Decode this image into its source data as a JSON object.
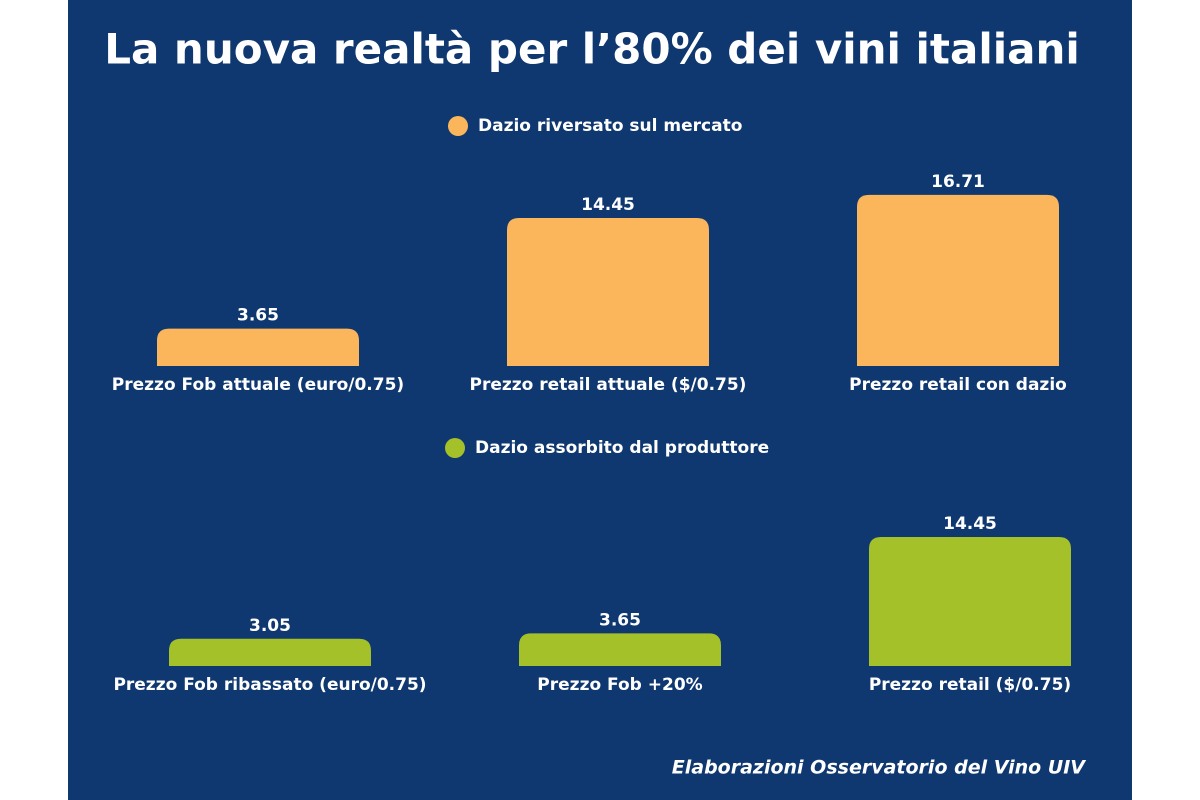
{
  "title": "La nuova realtà per l’80% dei vini italiani",
  "source": "Elaborazioni Osservatorio del Vino UIV",
  "chart_data": [
    {
      "type": "bar",
      "categories": [
        "Prezzo Fob attuale (euro/0.75)",
        "Prezzo retail attuale ($/0.75)",
        "Prezzo retail con dazio"
      ],
      "series": [
        {
          "name": "Dazio riversato sul mercato",
          "color": "#fbb65c",
          "values": [
            3.65,
            14.45,
            16.71
          ]
        }
      ]
    },
    {
      "type": "bar",
      "categories": [
        "Prezzo Fob ribassato (euro/0.75)",
        "Prezzo Fob +20%",
        "Prezzo retail ($/0.75)"
      ],
      "series": [
        {
          "name": "Dazio assorbito dal produttore",
          "color": "#a4c12a",
          "values": [
            3.05,
            3.65,
            14.45
          ]
        }
      ]
    }
  ]
}
